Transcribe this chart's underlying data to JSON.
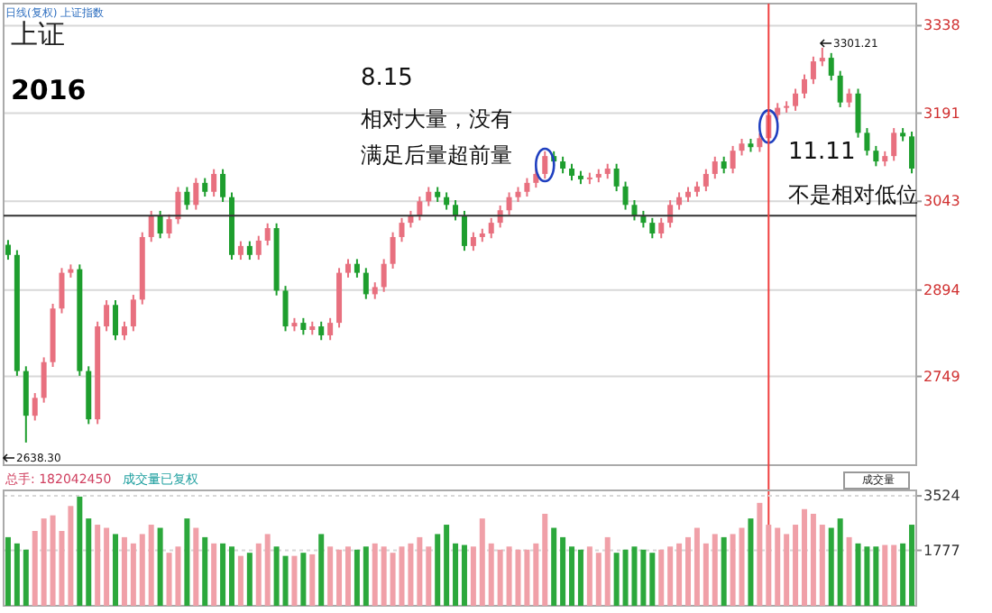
{
  "chart_data": [
    {
      "type": "candlestick",
      "title": "上证",
      "subtitle": "2016",
      "categories": [
        null,
        null,
        null,
        null,
        null,
        null,
        null,
        null,
        null,
        null,
        null,
        null,
        null,
        null,
        null,
        null,
        null,
        null,
        null,
        null,
        null,
        null,
        null,
        null,
        null,
        null,
        null,
        null,
        null,
        null,
        null,
        null,
        null,
        null,
        null,
        null,
        null,
        null,
        null,
        null,
        null,
        null,
        null,
        null,
        null,
        null,
        null,
        null,
        null,
        null,
        null,
        null,
        null,
        null,
        null,
        null,
        null,
        null,
        null,
        null,
        null,
        null,
        null,
        null,
        null,
        null,
        null,
        null,
        null,
        null,
        null,
        null,
        null,
        null,
        null,
        null,
        null,
        null,
        null,
        null,
        null,
        null,
        null,
        null,
        null,
        null,
        null,
        null,
        null,
        null,
        null,
        null,
        null,
        null,
        null,
        null,
        null,
        null,
        null,
        null,
        null,
        null
      ],
      "ohlc": [
        [
          2970,
          2978,
          2945,
          2953
        ],
        [
          2953,
          2961,
          2750,
          2758
        ],
        [
          2758,
          2766,
          2638,
          2683
        ],
        [
          2683,
          2721,
          2675,
          2713
        ],
        [
          2713,
          2781,
          2705,
          2773
        ],
        [
          2773,
          2871,
          2765,
          2863
        ],
        [
          2863,
          2931,
          2855,
          2923
        ],
        [
          2923,
          2937,
          2915,
          2929
        ],
        [
          2929,
          2937,
          2750,
          2758
        ],
        [
          2758,
          2766,
          2669,
          2677
        ],
        [
          2677,
          2841,
          2669,
          2833
        ],
        [
          2833,
          2877,
          2825,
          2869
        ],
        [
          2869,
          2877,
          2810,
          2818
        ],
        [
          2818,
          2841,
          2810,
          2833
        ],
        [
          2833,
          2886,
          2825,
          2878
        ],
        [
          2878,
          2991,
          2870,
          2983
        ],
        [
          2983,
          3027,
          2975,
          3019
        ],
        [
          3019,
          3027,
          2981,
          2989
        ],
        [
          2989,
          3021,
          2981,
          3013
        ],
        [
          3013,
          3067,
          3005,
          3059
        ],
        [
          3059,
          3067,
          3029,
          3037
        ],
        [
          3037,
          3082,
          3029,
          3074
        ],
        [
          3074,
          3082,
          3051,
          3059
        ],
        [
          3059,
          3097,
          3051,
          3089
        ],
        [
          3089,
          3097,
          3042,
          3050
        ],
        [
          3050,
          3058,
          2945,
          2953
        ],
        [
          2953,
          2976,
          2945,
          2968
        ],
        [
          2968,
          2976,
          2945,
          2953
        ],
        [
          2953,
          2985,
          2945,
          2977
        ],
        [
          2977,
          3006,
          2969,
          2998
        ],
        [
          2998,
          3006,
          2885,
          2893
        ],
        [
          2893,
          2901,
          2825,
          2833
        ],
        [
          2833,
          2847,
          2825,
          2839
        ],
        [
          2839,
          2847,
          2819,
          2827
        ],
        [
          2827,
          2841,
          2819,
          2833
        ],
        [
          2833,
          2841,
          2810,
          2818
        ],
        [
          2818,
          2847,
          2810,
          2839
        ],
        [
          2839,
          2931,
          2831,
          2923
        ],
        [
          2923,
          2946,
          2915,
          2938
        ],
        [
          2938,
          2946,
          2915,
          2923
        ],
        [
          2923,
          2931,
          2879,
          2887
        ],
        [
          2887,
          2907,
          2879,
          2899
        ],
        [
          2899,
          2946,
          2891,
          2938
        ],
        [
          2938,
          2991,
          2930,
          2983
        ],
        [
          2983,
          3015,
          2975,
          3007
        ],
        [
          3007,
          3027,
          2999,
          3019
        ],
        [
          3019,
          3051,
          3011,
          3043
        ],
        [
          3043,
          3067,
          3035,
          3059
        ],
        [
          3059,
          3067,
          3042,
          3050
        ],
        [
          3050,
          3058,
          3029,
          3037
        ],
        [
          3037,
          3045,
          3011,
          3019
        ],
        [
          3019,
          3027,
          2960,
          2968
        ],
        [
          2968,
          2991,
          2960,
          2983
        ],
        [
          2983,
          2997,
          2975,
          2989
        ],
        [
          2989,
          3015,
          2981,
          3007
        ],
        [
          3007,
          3036,
          2999,
          3028
        ],
        [
          3028,
          3058,
          3020,
          3050
        ],
        [
          3050,
          3067,
          3042,
          3059
        ],
        [
          3059,
          3082,
          3051,
          3074
        ],
        [
          3074,
          3097,
          3066,
          3089
        ],
        [
          3089,
          3127,
          3081,
          3119
        ],
        [
          3119,
          3127,
          3102,
          3110
        ],
        [
          3110,
          3118,
          3090,
          3098
        ],
        [
          3098,
          3106,
          3078,
          3086
        ],
        [
          3086,
          3094,
          3072,
          3080
        ],
        [
          3080,
          3091,
          3072,
          3083
        ],
        [
          3083,
          3097,
          3075,
          3089
        ],
        [
          3089,
          3106,
          3081,
          3098
        ],
        [
          3098,
          3106,
          3060,
          3068
        ],
        [
          3068,
          3076,
          3029,
          3037
        ],
        [
          3037,
          3045,
          3011,
          3019
        ],
        [
          3019,
          3027,
          2999,
          3007
        ],
        [
          3007,
          3015,
          2981,
          2989
        ],
        [
          2989,
          3015,
          2981,
          3007
        ],
        [
          3007,
          3045,
          2999,
          3037
        ],
        [
          3037,
          3058,
          3029,
          3050
        ],
        [
          3050,
          3067,
          3042,
          3059
        ],
        [
          3059,
          3076,
          3051,
          3068
        ],
        [
          3068,
          3097,
          3060,
          3089
        ],
        [
          3089,
          3118,
          3081,
          3110
        ],
        [
          3110,
          3118,
          3090,
          3098
        ],
        [
          3098,
          3136,
          3090,
          3128
        ],
        [
          3128,
          3148,
          3120,
          3140
        ],
        [
          3140,
          3148,
          3126,
          3134
        ],
        [
          3134,
          3157,
          3126,
          3149
        ],
        [
          3149,
          3196,
          3141,
          3188
        ],
        [
          3188,
          3208,
          3180,
          3200
        ],
        [
          3200,
          3211,
          3192,
          3203
        ],
        [
          3203,
          3232,
          3195,
          3224
        ],
        [
          3224,
          3256,
          3216,
          3248
        ],
        [
          3248,
          3286,
          3240,
          3278
        ],
        [
          3278,
          3301,
          3270,
          3284
        ],
        [
          3284,
          3292,
          3246,
          3254
        ],
        [
          3254,
          3262,
          3201,
          3209
        ],
        [
          3209,
          3232,
          3201,
          3224
        ],
        [
          3224,
          3232,
          3150,
          3158
        ],
        [
          3158,
          3166,
          3120,
          3128
        ],
        [
          3128,
          3136,
          3102,
          3110
        ],
        [
          3110,
          3127,
          3102,
          3119
        ],
        [
          3119,
          3166,
          3111,
          3158
        ],
        [
          3158,
          3166,
          3144,
          3152
        ],
        [
          3152,
          3160,
          3090,
          3098
        ]
      ],
      "colors": [
        "#1e9e2e",
        "#1e9e2e",
        "#1e9e2e",
        "#e8707f",
        "#e8707f",
        "#e8707f",
        "#e8707f",
        "#e8707f",
        "#1e9e2e",
        "#1e9e2e",
        "#e8707f",
        "#e8707f",
        "#1e9e2e",
        "#e8707f",
        "#e8707f",
        "#e8707f",
        "#e8707f",
        "#1e9e2e",
        "#e8707f",
        "#e8707f",
        "#1e9e2e",
        "#e8707f",
        "#1e9e2e",
        "#e8707f",
        "#1e9e2e",
        "#1e9e2e",
        "#e8707f",
        "#1e9e2e",
        "#e8707f",
        "#e8707f",
        "#1e9e2e",
        "#1e9e2e",
        "#e8707f",
        "#1e9e2e",
        "#e8707f",
        "#1e9e2e",
        "#e8707f",
        "#e8707f",
        "#e8707f",
        "#1e9e2e",
        "#1e9e2e",
        "#e8707f",
        "#e8707f",
        "#e8707f",
        "#e8707f",
        "#e8707f",
        "#e8707f",
        "#e8707f",
        "#1e9e2e",
        "#1e9e2e",
        "#1e9e2e",
        "#1e9e2e",
        "#e8707f",
        "#e8707f",
        "#e8707f",
        "#e8707f",
        "#e8707f",
        "#e8707f",
        "#e8707f",
        "#e8707f",
        "#e8707f",
        "#1e9e2e",
        "#1e9e2e",
        "#1e9e2e",
        "#1e9e2e",
        "#e8707f",
        "#e8707f",
        "#e8707f",
        "#1e9e2e",
        "#1e9e2e",
        "#1e9e2e",
        "#1e9e2e",
        "#1e9e2e",
        "#e8707f",
        "#e8707f",
        "#e8707f",
        "#e8707f",
        "#e8707f",
        "#e8707f",
        "#e8707f",
        "#1e9e2e",
        "#e8707f",
        "#e8707f",
        "#1e9e2e",
        "#e8707f",
        "#e8707f",
        "#e8707f",
        "#e8707f",
        "#e8707f",
        "#e8707f",
        "#e8707f",
        "#e8707f",
        "#1e9e2e",
        "#1e9e2e",
        "#e8707f",
        "#1e9e2e",
        "#1e9e2e",
        "#1e9e2e",
        "#e8707f",
        "#e8707f",
        "#1e9e2e",
        "#1e9e2e"
      ],
      "ylim": [
        2600,
        3375
      ],
      "yticks": [
        2749,
        2894,
        3043,
        3191,
        3338
      ],
      "grid": "y",
      "tick_labels": "y",
      "ref_lines": [
        {
          "axis": "y",
          "value": 3019,
          "color": "#333333"
        }
      ],
      "annotations": [
        "日线(复权)  上证指数",
        "8.15",
        "相对大量，没有满足后量超前量",
        "11.11",
        "不是相对低位",
        "2638.30",
        "3301.21"
      ]
    },
    {
      "type": "bar",
      "title": "总手: 182042450",
      "categories": [
        null,
        null,
        null,
        null,
        null,
        null,
        null,
        null,
        null,
        null,
        null,
        null,
        null,
        null,
        null,
        null,
        null,
        null,
        null,
        null,
        null,
        null,
        null,
        null,
        null,
        null,
        null,
        null,
        null,
        null,
        null,
        null,
        null,
        null,
        null,
        null,
        null,
        null,
        null,
        null,
        null,
        null,
        null,
        null,
        null,
        null,
        null,
        null,
        null,
        null,
        null,
        null,
        null,
        null,
        null,
        null,
        null,
        null,
        null,
        null,
        null,
        null,
        null,
        null,
        null,
        null,
        null,
        null,
        null,
        null,
        null,
        null,
        null,
        null,
        null,
        null,
        null,
        null,
        null,
        null,
        null,
        null,
        null,
        null,
        null,
        null,
        null,
        null,
        null,
        null,
        null,
        null,
        null,
        null,
        null,
        null,
        null,
        null,
        null,
        null,
        null,
        null
      ],
      "values": [
        2200,
        2000,
        1800,
        2400,
        2800,
        2900,
        2400,
        3200,
        3500,
        2800,
        2600,
        2500,
        2300,
        2200,
        2000,
        2300,
        2600,
        2500,
        1700,
        1900,
        2800,
        2500,
        2200,
        2000,
        2000,
        1900,
        1600,
        1700,
        2000,
        2300,
        1900,
        1600,
        1600,
        1700,
        1650,
        2300,
        1900,
        1800,
        1900,
        1800,
        1900,
        2000,
        1900,
        1700,
        1900,
        2000,
        2200,
        1900,
        2300,
        2600,
        2000,
        1950,
        1900,
        2800,
        2000,
        1800,
        1900,
        1800,
        1800,
        2000,
        2950,
        2500,
        2200,
        1900,
        1800,
        1900,
        1700,
        2200,
        1700,
        1800,
        1900,
        1800,
        1700,
        1800,
        1900,
        2000,
        2200,
        2500,
        2000,
        2300,
        2200,
        2300,
        2500,
        2800,
        3300,
        2600,
        2500,
        2300,
        2600,
        3100,
        2950,
        2600,
        2500,
        2800,
        2200,
        2000,
        1900,
        1900,
        1950,
        1950,
        2000,
        2600
      ],
      "colors": [
        "#2ca83c",
        "#2ca83c",
        "#2ca83c",
        "#f0a0a8",
        "#f0a0a8",
        "#f0a0a8",
        "#f0a0a8",
        "#f0a0a8",
        "#2ca83c",
        "#2ca83c",
        "#f0a0a8",
        "#f0a0a8",
        "#2ca83c",
        "#f0a0a8",
        "#f0a0a8",
        "#f0a0a8",
        "#f0a0a8",
        "#2ca83c",
        "#f0a0a8",
        "#f0a0a8",
        "#2ca83c",
        "#f0a0a8",
        "#2ca83c",
        "#f0a0a8",
        "#2ca83c",
        "#2ca83c",
        "#f0a0a8",
        "#2ca83c",
        "#f0a0a8",
        "#f0a0a8",
        "#2ca83c",
        "#2ca83c",
        "#f0a0a8",
        "#2ca83c",
        "#f0a0a8",
        "#2ca83c",
        "#f0a0a8",
        "#f0a0a8",
        "#f0a0a8",
        "#2ca83c",
        "#2ca83c",
        "#f0a0a8",
        "#f0a0a8",
        "#f0a0a8",
        "#f0a0a8",
        "#f0a0a8",
        "#f0a0a8",
        "#f0a0a8",
        "#2ca83c",
        "#2ca83c",
        "#2ca83c",
        "#2ca83c",
        "#f0a0a8",
        "#f0a0a8",
        "#f0a0a8",
        "#f0a0a8",
        "#f0a0a8",
        "#f0a0a8",
        "#f0a0a8",
        "#f0a0a8",
        "#f0a0a8",
        "#2ca83c",
        "#2ca83c",
        "#2ca83c",
        "#2ca83c",
        "#f0a0a8",
        "#f0a0a8",
        "#f0a0a8",
        "#2ca83c",
        "#2ca83c",
        "#2ca83c",
        "#2ca83c",
        "#2ca83c",
        "#f0a0a8",
        "#f0a0a8",
        "#f0a0a8",
        "#f0a0a8",
        "#f0a0a8",
        "#f0a0a8",
        "#f0a0a8",
        "#2ca83c",
        "#f0a0a8",
        "#f0a0a8",
        "#2ca83c",
        "#f0a0a8",
        "#f0a0a8",
        "#f0a0a8",
        "#f0a0a8",
        "#f0a0a8",
        "#f0a0a8",
        "#f0a0a8",
        "#f0a0a8",
        "#2ca83c",
        "#2ca83c",
        "#f0a0a8",
        "#2ca83c",
        "#2ca83c",
        "#2ca83c",
        "#f0a0a8",
        "#f0a0a8",
        "#2ca83c",
        "#2ca83c"
      ],
      "ylim": [
        0,
        3700
      ],
      "yticks": [
        1777,
        3524
      ],
      "grid": "y",
      "tick_labels": "y",
      "annotations": [
        "成交量已复权",
        "成交量"
      ]
    }
  ]
}
